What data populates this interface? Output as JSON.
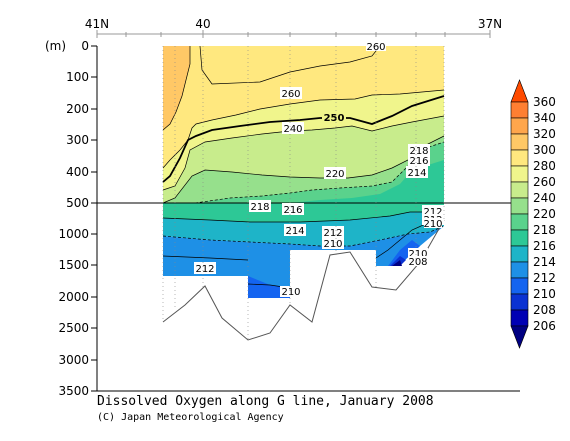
{
  "chart_data": {
    "type": "contour",
    "title": "Dissolved Oxygen along G line, January 2008",
    "credit": "(C) Japan Meteorological Agency",
    "x_axis": {
      "ticks": [
        "41N",
        "40",
        "37N"
      ],
      "range_deg_north": [
        41,
        37
      ],
      "grid": true
    },
    "y_axis": {
      "unit_label": "(m)",
      "upper_ticks": [
        "0",
        "100",
        "200",
        "300",
        "400",
        "500"
      ],
      "lower_ticks": [
        "1000",
        "1500",
        "2000",
        "2500",
        "3000",
        "3500"
      ],
      "upper_range": [
        0,
        500
      ],
      "lower_range": [
        500,
        3500
      ],
      "break_at": 500
    },
    "colorbar": {
      "levels": [
        "360",
        "340",
        "320",
        "300",
        "280",
        "260",
        "240",
        "220",
        "218",
        "216",
        "214",
        "212",
        "210",
        "208",
        "206"
      ],
      "colors": [
        "#ff4b00",
        "#ff7f32",
        "#ffa64c",
        "#ffc866",
        "#ffe87f",
        "#f0f58c",
        "#c8ec8c",
        "#96e08c",
        "#5ad28c",
        "#2dc896",
        "#1eb4c8",
        "#1e90e6",
        "#1464f0",
        "#0a32d2",
        "#0000b4",
        "#000082"
      ],
      "position": "right"
    },
    "contour_labels": [
      "260",
      "260",
      "250",
      "240",
      "220",
      "218",
      "216",
      "214",
      "218",
      "216",
      "214",
      "212",
      "212",
      "210",
      "212",
      "212",
      "210",
      "210",
      "208",
      "210"
    ],
    "bold_contour": "250"
  }
}
